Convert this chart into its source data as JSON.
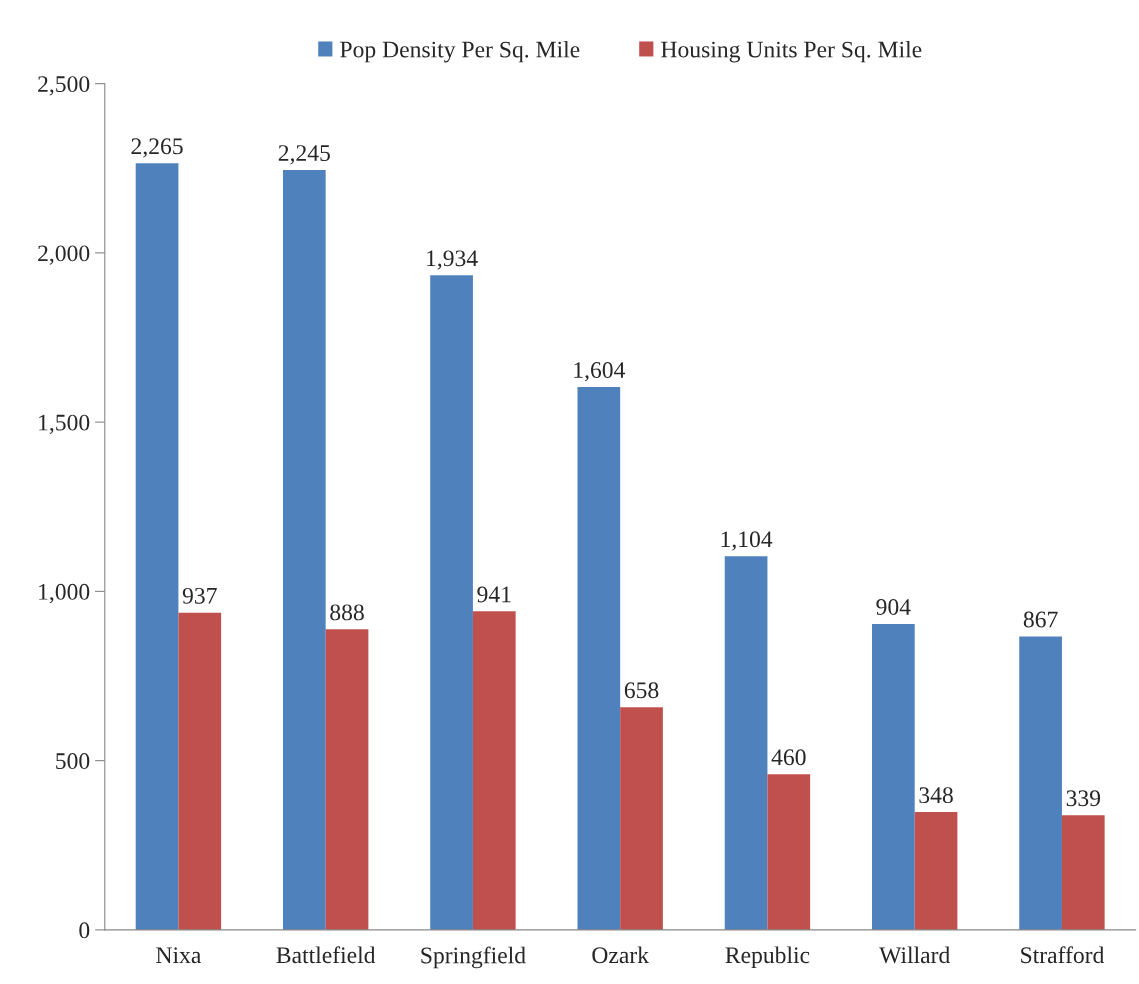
{
  "chart_data": {
    "type": "bar",
    "categories": [
      "Nixa",
      "Battlefield",
      "Springfield",
      "Ozark",
      "Republic",
      "Willard",
      "Strafford"
    ],
    "series": [
      {
        "name": "Pop Density Per Sq. Mile",
        "color": "#4f81bd",
        "values": [
          2265,
          2245,
          1934,
          1604,
          1104,
          904,
          867
        ],
        "value_labels": [
          "2,265",
          "2,245",
          "1,934",
          "1,604",
          "1,104",
          "904",
          "867"
        ]
      },
      {
        "name": "Housing Units Per Sq. Mile",
        "color": "#c0504d",
        "values": [
          937,
          888,
          941,
          658,
          460,
          348,
          339
        ],
        "value_labels": [
          "937",
          "888",
          "941",
          "658",
          "460",
          "348",
          "339"
        ]
      }
    ],
    "ylim": [
      0,
      2500
    ],
    "yticks": [
      0,
      500,
      {
        "value": 1000,
        "label": "1,000"
      },
      {
        "value": 1500,
        "label": "1,500"
      },
      {
        "value": 2000,
        "label": "2,000"
      },
      {
        "value": 2500,
        "label": "2,500"
      }
    ],
    "grid": false,
    "legend": "top"
  }
}
